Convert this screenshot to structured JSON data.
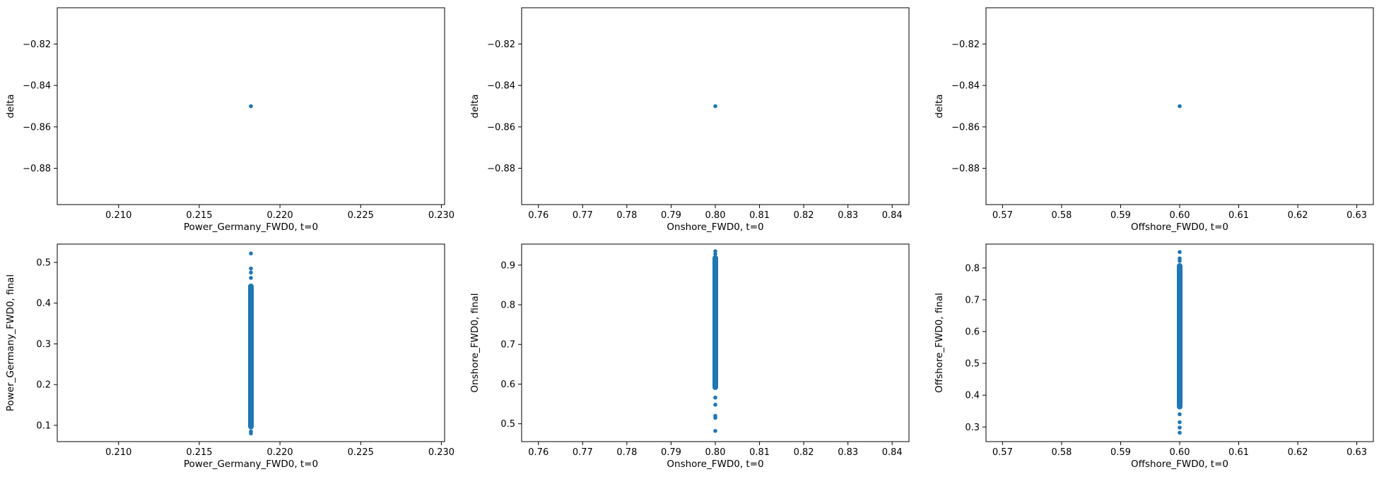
{
  "chart_data": [
    {
      "type": "scatter",
      "xlabel": "Power_Germany_FWD0, t=0",
      "ylabel": "delta",
      "xlim": [
        0.2062,
        0.2302
      ],
      "ylim": [
        -0.8975,
        -0.8025
      ],
      "xticks": [
        0.21,
        0.215,
        0.22,
        0.225,
        0.23
      ],
      "yticks": [
        -0.82,
        -0.84,
        -0.86,
        -0.88
      ],
      "xtick_labels": [
        "0.210",
        "0.215",
        "0.220",
        "0.225",
        "0.230"
      ],
      "ytick_labels": [
        "−0.82",
        "−0.84",
        "−0.86",
        "−0.88"
      ],
      "points": [
        {
          "x": 0.2182,
          "y": -0.85
        }
      ],
      "color": "#1f77b4",
      "grid": false
    },
    {
      "type": "scatter",
      "xlabel": "Onshore_FWD0, t=0",
      "ylabel": "delta",
      "xlim": [
        0.7562,
        0.8438
      ],
      "ylim": [
        -0.8975,
        -0.8025
      ],
      "xticks": [
        0.76,
        0.77,
        0.78,
        0.79,
        0.8,
        0.81,
        0.82,
        0.83,
        0.84
      ],
      "yticks": [
        -0.82,
        -0.84,
        -0.86,
        -0.88
      ],
      "xtick_labels": [
        "0.76",
        "0.77",
        "0.78",
        "0.79",
        "0.80",
        "0.81",
        "0.82",
        "0.83",
        "0.84"
      ],
      "ytick_labels": [
        "−0.82",
        "−0.84",
        "−0.86",
        "−0.88"
      ],
      "points": [
        {
          "x": 0.8,
          "y": -0.85
        }
      ],
      "color": "#1f77b4",
      "grid": false
    },
    {
      "type": "scatter",
      "xlabel": "Offshore_FWD0, t=0",
      "ylabel": "delta",
      "xlim": [
        0.5672,
        0.6328
      ],
      "ylim": [
        -0.8975,
        -0.8025
      ],
      "xticks": [
        0.57,
        0.58,
        0.59,
        0.6,
        0.61,
        0.62,
        0.63
      ],
      "yticks": [
        -0.82,
        -0.84,
        -0.86,
        -0.88
      ],
      "xtick_labels": [
        "0.57",
        "0.58",
        "0.59",
        "0.60",
        "0.61",
        "0.62",
        "0.63"
      ],
      "ytick_labels": [
        "−0.82",
        "−0.84",
        "−0.86",
        "−0.88"
      ],
      "points": [
        {
          "x": 0.6,
          "y": -0.85
        }
      ],
      "color": "#1f77b4",
      "grid": false
    },
    {
      "type": "scatter",
      "xlabel": "Power_Germany_FWD0, t=0",
      "ylabel": "Power_Germany_FWD0, final",
      "xlim": [
        0.2062,
        0.2302
      ],
      "ylim": [
        0.06,
        0.545
      ],
      "xticks": [
        0.21,
        0.215,
        0.22,
        0.225,
        0.23
      ],
      "yticks": [
        0.1,
        0.2,
        0.3,
        0.4,
        0.5
      ],
      "xtick_labels": [
        "0.210",
        "0.215",
        "0.220",
        "0.225",
        "0.230"
      ],
      "ytick_labels": [
        "0.1",
        "0.2",
        "0.3",
        "0.4",
        "0.5"
      ],
      "points": [
        {
          "x": 0.2182,
          "y": 0.522
        },
        {
          "x": 0.2182,
          "y": 0.485
        },
        {
          "x": 0.2182,
          "y": 0.475
        },
        {
          "x": 0.2182,
          "y": 0.462
        },
        {
          "x": 0.2182,
          "y": 0.085
        },
        {
          "x": 0.2182,
          "y": 0.08
        }
      ],
      "band": {
        "x": 0.2182,
        "y_from": 0.09,
        "y_to": 0.448
      },
      "color": "#1f77b4",
      "grid": false
    },
    {
      "type": "scatter",
      "xlabel": "Onshore_FWD0, t=0",
      "ylabel": "Onshore_FWD0, final",
      "xlim": [
        0.7562,
        0.8438
      ],
      "ylim": [
        0.455,
        0.953
      ],
      "xticks": [
        0.76,
        0.77,
        0.78,
        0.79,
        0.8,
        0.81,
        0.82,
        0.83,
        0.84
      ],
      "yticks": [
        0.5,
        0.6,
        0.7,
        0.8,
        0.9
      ],
      "xtick_labels": [
        "0.76",
        "0.77",
        "0.78",
        "0.79",
        "0.80",
        "0.81",
        "0.82",
        "0.83",
        "0.84"
      ],
      "ytick_labels": [
        "0.5",
        "0.6",
        "0.7",
        "0.8",
        "0.9"
      ],
      "points": [
        {
          "x": 0.8,
          "y": 0.935
        },
        {
          "x": 0.8,
          "y": 0.928
        },
        {
          "x": 0.8,
          "y": 0.566
        },
        {
          "x": 0.8,
          "y": 0.548
        },
        {
          "x": 0.8,
          "y": 0.52
        },
        {
          "x": 0.8,
          "y": 0.515
        },
        {
          "x": 0.8,
          "y": 0.482
        }
      ],
      "band": {
        "x": 0.8,
        "y_from": 0.585,
        "y_to": 0.925
      },
      "color": "#1f77b4",
      "grid": false
    },
    {
      "type": "scatter",
      "xlabel": "Offshore_FWD0, t=0",
      "ylabel": "Offshore_FWD0, final",
      "xlim": [
        0.5672,
        0.6328
      ],
      "ylim": [
        0.254,
        0.875
      ],
      "xticks": [
        0.57,
        0.58,
        0.59,
        0.6,
        0.61,
        0.62,
        0.63
      ],
      "yticks": [
        0.3,
        0.4,
        0.5,
        0.6,
        0.7,
        0.8
      ],
      "xtick_labels": [
        "0.57",
        "0.58",
        "0.59",
        "0.60",
        "0.61",
        "0.62",
        "0.63"
      ],
      "ytick_labels": [
        "0.3",
        "0.4",
        "0.5",
        "0.6",
        "0.7",
        "0.8"
      ],
      "points": [
        {
          "x": 0.6,
          "y": 0.85
        },
        {
          "x": 0.6,
          "y": 0.83
        },
        {
          "x": 0.6,
          "y": 0.822
        },
        {
          "x": 0.6,
          "y": 0.34
        },
        {
          "x": 0.6,
          "y": 0.315
        },
        {
          "x": 0.6,
          "y": 0.298
        },
        {
          "x": 0.6,
          "y": 0.282
        }
      ],
      "band": {
        "x": 0.6,
        "y_from": 0.355,
        "y_to": 0.815
      },
      "color": "#1f77b4",
      "grid": false
    }
  ]
}
